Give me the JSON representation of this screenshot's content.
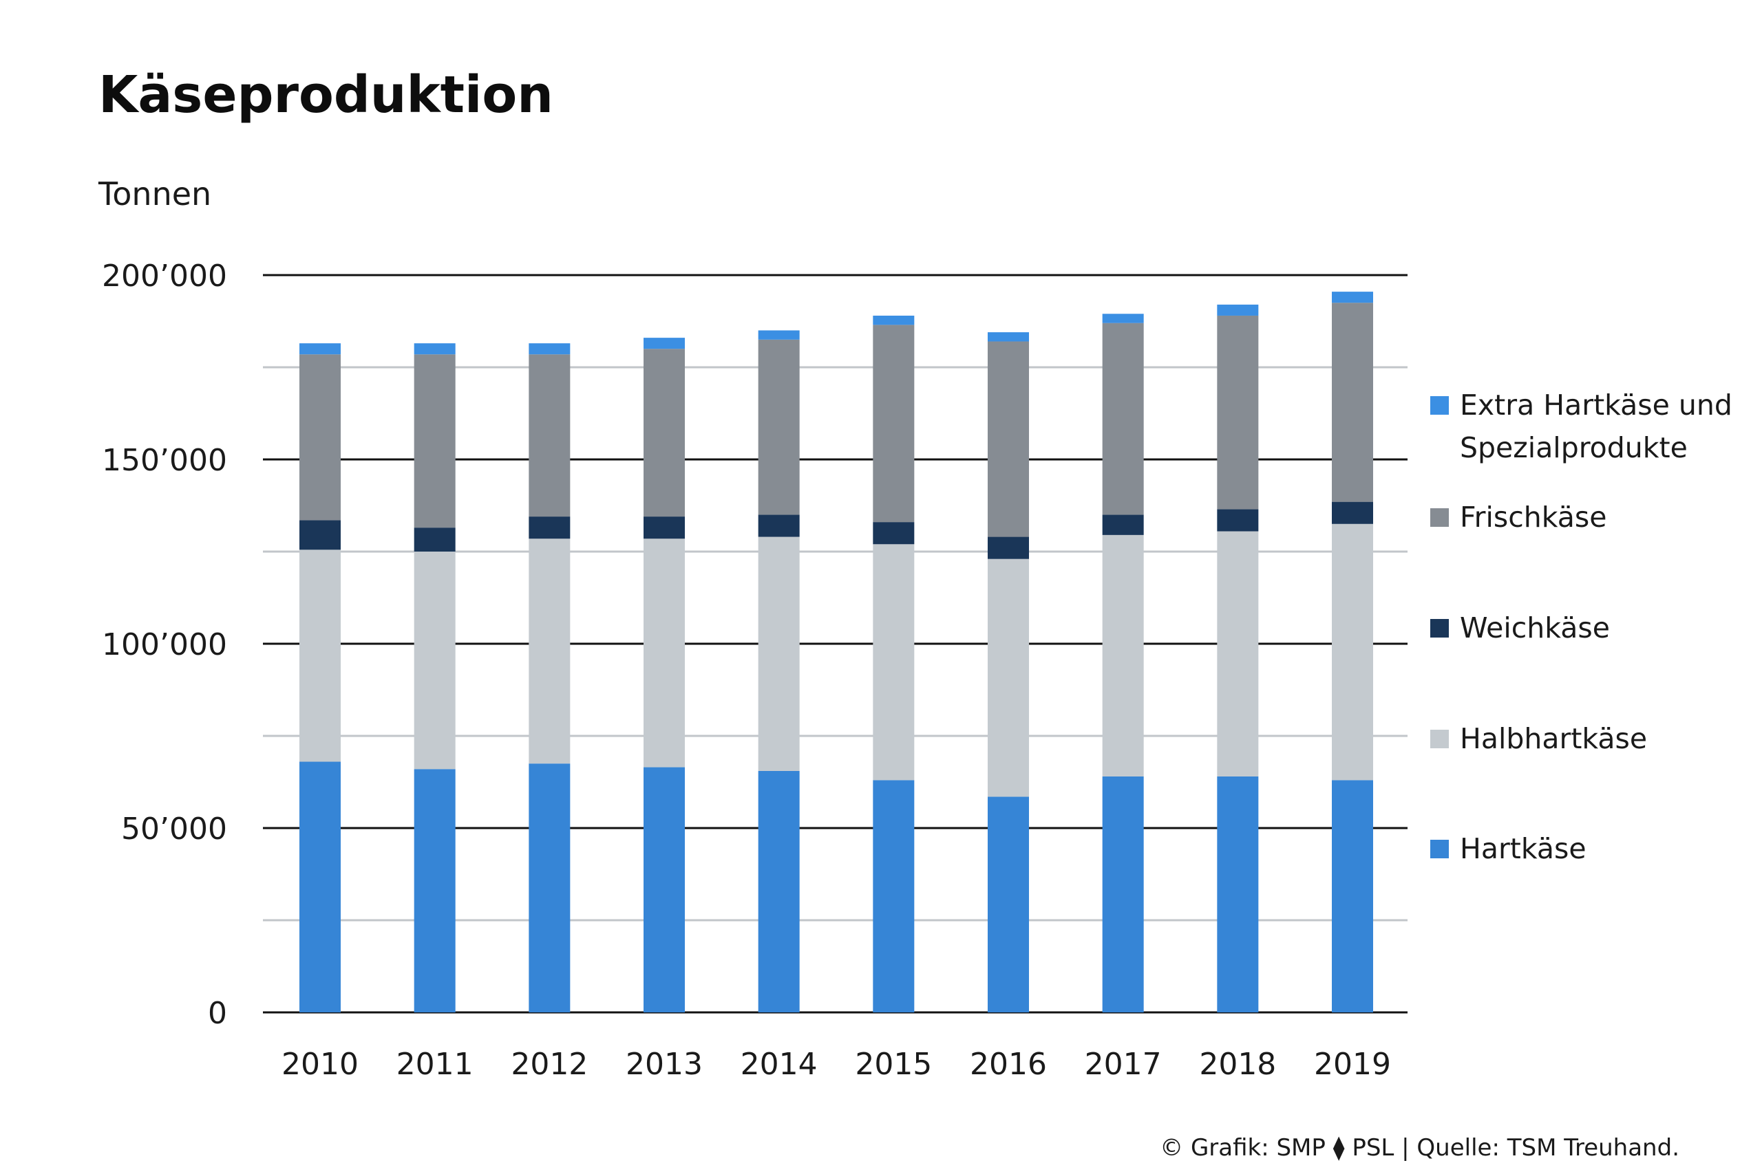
{
  "chart_data": {
    "type": "bar",
    "stacked": true,
    "title": "Käseproduktion",
    "ylabel": "Tonnen",
    "xlabel": "",
    "ylim": [
      0,
      200000
    ],
    "yticks": [
      0,
      50000,
      100000,
      150000,
      200000
    ],
    "ytick_labels": [
      "0",
      "50’000",
      "100’000",
      "150’000",
      "200’000"
    ],
    "grid": "horizontal",
    "legend_position": "right",
    "categories": [
      "2010",
      "2011",
      "2012",
      "2013",
      "2014",
      "2015",
      "2016",
      "2017",
      "2018",
      "2019"
    ],
    "series": [
      {
        "name": "Hartkäse",
        "color": "#3685d6",
        "values": [
          68000,
          66000,
          67500,
          66500,
          65500,
          63000,
          58500,
          64000,
          64000,
          63000
        ]
      },
      {
        "name": "Halbhartkäse",
        "color": "#c4cacf",
        "values": [
          57500,
          59000,
          61000,
          62000,
          63500,
          64000,
          64500,
          65500,
          66500,
          69500
        ]
      },
      {
        "name": "Weichkäse",
        "color": "#1a3658",
        "values": [
          8000,
          6500,
          6000,
          6000,
          6000,
          6000,
          6000,
          5500,
          6000,
          6000
        ]
      },
      {
        "name": "Frischkäse",
        "color": "#868c93",
        "values": [
          45000,
          47000,
          44000,
          45500,
          47500,
          53500,
          53000,
          52000,
          52500,
          54000
        ]
      },
      {
        "name": "Extra Hartkäse und Spezialprodukte",
        "legend_lines": [
          "Extra Hartkäse und",
          "Spezialprodukte"
        ],
        "color": "#3b8fe3",
        "values": [
          3000,
          3000,
          3000,
          3000,
          2500,
          2500,
          2500,
          2500,
          3000,
          3000
        ]
      }
    ],
    "legend_order": [
      "Extra Hartkäse und Spezialprodukte",
      "Frischkäse",
      "Weichkäse",
      "Halbhartkäse",
      "Hartkäse"
    ],
    "source": "© Grafik: SMP ⧫ PSL | Quelle: TSM Treuhand."
  }
}
